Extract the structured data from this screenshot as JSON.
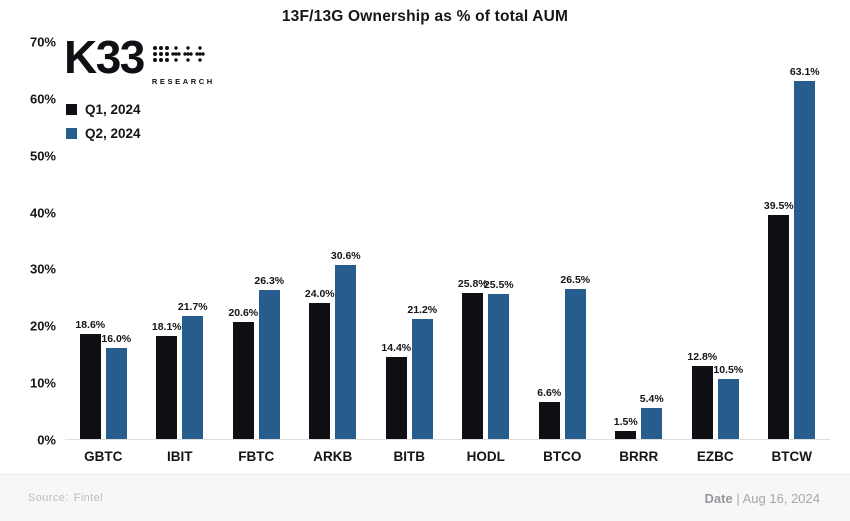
{
  "header": {
    "title": "13F/13G Ownership as % of total AUM"
  },
  "logo": {
    "text": "K33",
    "subtext": "RESEARCH"
  },
  "legend": {
    "q1_label": "Q1, 2024",
    "q2_label": "Q2, 2024",
    "q1_color": "#101014",
    "q2_color": "#275d8c"
  },
  "chart_data": {
    "type": "bar",
    "title": "13F/13G Ownership as % of total AUM",
    "categories": [
      "GBTC",
      "IBIT",
      "FBTC",
      "ARKB",
      "BITB",
      "HODL",
      "BTCO",
      "BRRR",
      "EZBC",
      "BTCW"
    ],
    "series": [
      {
        "name": "Q1, 2024",
        "color": "#101014",
        "values": [
          18.6,
          18.1,
          20.6,
          24.0,
          14.4,
          25.8,
          6.6,
          1.5,
          12.8,
          39.5
        ],
        "labels": [
          "18.6%",
          "18.1%",
          "20.6%",
          "24.0%",
          "14.4%",
          "25.8%",
          "6.6%",
          "1.5%",
          "12.8%",
          "39.5%"
        ]
      },
      {
        "name": "Q2, 2024",
        "color": "#275d8c",
        "values": [
          16.0,
          21.7,
          26.3,
          30.6,
          21.2,
          25.5,
          26.5,
          5.4,
          10.5,
          63.1
        ],
        "labels": [
          "16.0%",
          "21.7%",
          "26.3%",
          "30.6%",
          "21.2%",
          "25.5%",
          "26.5%",
          "5.4%",
          "10.5%",
          "63.1%"
        ]
      }
    ],
    "xlabel": "",
    "ylabel": "",
    "ylim": [
      0,
      70
    ],
    "yticks": [
      "0%",
      "10%",
      "20%",
      "30%",
      "40%",
      "50%",
      "60%",
      "70%"
    ],
    "grid": false,
    "legend_position": "top-left"
  },
  "footer": {
    "source_label": "Source:",
    "source_value": "Fintel",
    "date_label": "Date",
    "date_separator": "|",
    "date_value": "Aug 16, 2024"
  }
}
